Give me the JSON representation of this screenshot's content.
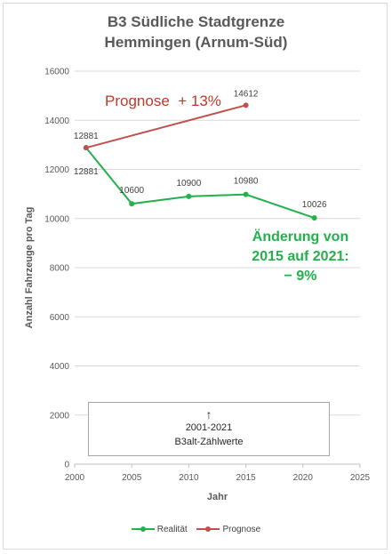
{
  "chart_data": {
    "type": "line",
    "title": "B3 Südliche Stadtgrenze",
    "subtitle": "Hemmingen (Arnum-Süd)",
    "xlabel": "Jahr",
    "ylabel": "Anzahl Fahrzeuge pro Tag",
    "xlim": [
      2000,
      2025
    ],
    "ylim": [
      0,
      16000
    ],
    "x_ticks": [
      2000,
      2005,
      2010,
      2015,
      2020,
      2025
    ],
    "y_ticks": [
      0,
      2000,
      4000,
      6000,
      8000,
      10000,
      12000,
      14000,
      16000
    ],
    "grid": "horizontal",
    "legend_position": "bottom",
    "series": [
      {
        "name": "Realität",
        "color": "#22b14c",
        "x": [
          2001,
          2005,
          2010,
          2015,
          2021
        ],
        "y": [
          12881,
          10600,
          10900,
          10980,
          10026
        ],
        "labels": [
          "12881",
          "10600",
          "10900",
          "10980",
          "10026"
        ]
      },
      {
        "name": "Prognose",
        "color": "#c0504d",
        "x": [
          2001,
          2015
        ],
        "y": [
          12881,
          14612
        ],
        "labels": [
          "12881",
          "14612"
        ]
      }
    ],
    "annotations": {
      "prognose": "Prognose  + 13%",
      "change_line1": "Änderung von",
      "change_line2": "2015 auf 2021:",
      "change_line3": "− 9%",
      "note_arrow": "↑",
      "note_line1": "2001-2021",
      "note_line2": "B3alt-Zählwerte"
    }
  }
}
